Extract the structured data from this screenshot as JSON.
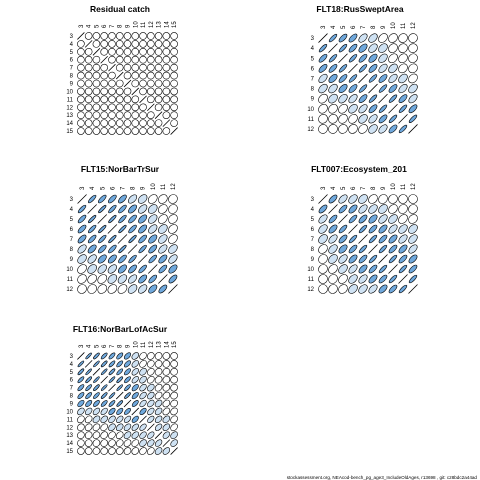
{
  "chart_data": [
    {
      "type": "heatmap",
      "title": "Residual catch",
      "ages": [
        "3",
        "4",
        "5",
        "6",
        "7",
        "8",
        "9",
        "10",
        "11",
        "12",
        "13",
        "14",
        "15"
      ],
      "values": [
        [
          1.0,
          0.05,
          0.0,
          0.0,
          0.0,
          0.0,
          0.0,
          0.0,
          0.0,
          0.0,
          0.0,
          0.0,
          0.0
        ],
        [
          0.05,
          1.0,
          0.05,
          0.0,
          0.0,
          0.0,
          0.0,
          0.0,
          0.0,
          0.0,
          0.0,
          0.0,
          0.0
        ],
        [
          0.0,
          0.05,
          1.0,
          0.05,
          0.0,
          0.0,
          0.0,
          0.0,
          0.0,
          0.0,
          0.0,
          0.0,
          0.0
        ],
        [
          0.0,
          0.0,
          0.05,
          1.0,
          0.05,
          0.0,
          0.0,
          0.0,
          0.0,
          0.0,
          0.0,
          0.0,
          0.0
        ],
        [
          0.0,
          0.0,
          0.0,
          0.05,
          1.0,
          0.05,
          0.0,
          0.0,
          0.0,
          0.0,
          0.0,
          0.0,
          0.0
        ],
        [
          0.0,
          0.0,
          0.0,
          0.0,
          0.05,
          1.0,
          0.05,
          0.0,
          0.0,
          0.0,
          0.0,
          0.0,
          0.0
        ],
        [
          0.0,
          0.0,
          0.0,
          0.0,
          0.0,
          0.05,
          1.0,
          0.05,
          0.0,
          0.0,
          0.0,
          0.0,
          0.0
        ],
        [
          0.0,
          0.0,
          0.0,
          0.0,
          0.0,
          0.0,
          0.05,
          1.0,
          0.05,
          0.0,
          0.0,
          0.0,
          0.0
        ],
        [
          0.0,
          0.0,
          0.0,
          0.0,
          0.0,
          0.0,
          0.0,
          0.05,
          1.0,
          0.05,
          0.0,
          0.0,
          0.0
        ],
        [
          0.0,
          0.0,
          0.0,
          0.0,
          0.0,
          0.0,
          0.0,
          0.0,
          0.05,
          1.0,
          0.05,
          0.0,
          0.0
        ],
        [
          0.0,
          0.0,
          0.0,
          0.0,
          0.0,
          0.0,
          0.0,
          0.0,
          0.0,
          0.05,
          1.0,
          0.05,
          0.0
        ],
        [
          0.0,
          0.0,
          0.0,
          0.0,
          0.0,
          0.0,
          0.0,
          0.0,
          0.0,
          0.0,
          0.05,
          1.0,
          0.05
        ],
        [
          0.0,
          0.0,
          0.0,
          0.0,
          0.0,
          0.0,
          0.0,
          0.0,
          0.0,
          0.0,
          0.0,
          0.05,
          1.0
        ]
      ]
    },
    {
      "type": "heatmap",
      "title": "FLT18:RusSweptArea",
      "ages": [
        "3",
        "4",
        "5",
        "6",
        "7",
        "8",
        "9",
        "10",
        "11",
        "12"
      ],
      "values": [
        [
          1.0,
          0.85,
          0.75,
          0.7,
          0.55,
          0.45,
          0.3,
          0.2,
          0.1,
          0.05
        ],
        [
          0.85,
          1.0,
          0.85,
          0.75,
          0.6,
          0.45,
          0.35,
          0.2,
          0.1,
          0.05
        ],
        [
          0.75,
          0.85,
          1.0,
          0.85,
          0.75,
          0.6,
          0.45,
          0.3,
          0.2,
          0.1
        ],
        [
          0.7,
          0.75,
          0.85,
          1.0,
          0.85,
          0.7,
          0.55,
          0.4,
          0.25,
          0.15
        ],
        [
          0.55,
          0.6,
          0.75,
          0.85,
          1.0,
          0.85,
          0.7,
          0.55,
          0.4,
          0.25
        ],
        [
          0.45,
          0.45,
          0.6,
          0.7,
          0.85,
          1.0,
          0.85,
          0.7,
          0.55,
          0.4
        ],
        [
          0.3,
          0.35,
          0.45,
          0.55,
          0.7,
          0.85,
          1.0,
          0.85,
          0.7,
          0.55
        ],
        [
          0.2,
          0.2,
          0.3,
          0.4,
          0.55,
          0.7,
          0.85,
          1.0,
          0.85,
          0.7
        ],
        [
          0.1,
          0.1,
          0.2,
          0.25,
          0.4,
          0.55,
          0.7,
          0.85,
          1.0,
          0.85
        ],
        [
          0.05,
          0.05,
          0.1,
          0.15,
          0.25,
          0.4,
          0.55,
          0.7,
          0.85,
          1.0
        ]
      ]
    },
    {
      "type": "heatmap",
      "title": "FLT15:NorBarTrSur",
      "ages": [
        "3",
        "4",
        "5",
        "6",
        "7",
        "8",
        "9",
        "10",
        "11",
        "12"
      ],
      "values": [
        [
          1.0,
          0.85,
          0.8,
          0.75,
          0.7,
          0.55,
          0.4,
          0.3,
          0.2,
          0.1
        ],
        [
          0.85,
          1.0,
          0.9,
          0.85,
          0.8,
          0.65,
          0.5,
          0.35,
          0.25,
          0.15
        ],
        [
          0.8,
          0.9,
          1.0,
          0.9,
          0.85,
          0.75,
          0.6,
          0.45,
          0.3,
          0.2
        ],
        [
          0.75,
          0.85,
          0.9,
          1.0,
          0.9,
          0.8,
          0.65,
          0.5,
          0.35,
          0.25
        ],
        [
          0.7,
          0.8,
          0.85,
          0.9,
          1.0,
          0.9,
          0.75,
          0.6,
          0.45,
          0.3
        ],
        [
          0.55,
          0.65,
          0.75,
          0.8,
          0.9,
          1.0,
          0.85,
          0.7,
          0.55,
          0.4
        ],
        [
          0.4,
          0.5,
          0.6,
          0.65,
          0.75,
          0.85,
          1.0,
          0.8,
          0.65,
          0.5
        ],
        [
          0.3,
          0.35,
          0.45,
          0.5,
          0.6,
          0.7,
          0.8,
          1.0,
          0.75,
          0.6
        ],
        [
          0.2,
          0.25,
          0.3,
          0.35,
          0.45,
          0.55,
          0.65,
          0.75,
          1.0,
          0.7
        ],
        [
          0.1,
          0.15,
          0.2,
          0.25,
          0.3,
          0.4,
          0.5,
          0.6,
          0.7,
          1.0
        ]
      ]
    },
    {
      "type": "heatmap",
      "title": "FLT007:Ecosystem_201",
      "ages": [
        "3",
        "4",
        "5",
        "6",
        "7",
        "8",
        "9",
        "10",
        "11",
        "12"
      ],
      "values": [
        [
          1.0,
          0.7,
          0.55,
          0.45,
          0.35,
          0.25,
          0.15,
          0.1,
          0.05,
          0.0
        ],
        [
          0.7,
          1.0,
          0.75,
          0.65,
          0.55,
          0.45,
          0.35,
          0.25,
          0.15,
          0.1
        ],
        [
          0.55,
          0.75,
          1.0,
          0.8,
          0.7,
          0.6,
          0.5,
          0.4,
          0.3,
          0.2
        ],
        [
          0.45,
          0.65,
          0.8,
          1.0,
          0.85,
          0.75,
          0.65,
          0.55,
          0.45,
          0.35
        ],
        [
          0.35,
          0.55,
          0.7,
          0.85,
          1.0,
          0.85,
          0.75,
          0.65,
          0.55,
          0.45
        ],
        [
          0.25,
          0.45,
          0.6,
          0.75,
          0.85,
          1.0,
          0.85,
          0.75,
          0.65,
          0.55
        ],
        [
          0.15,
          0.35,
          0.5,
          0.65,
          0.75,
          0.85,
          1.0,
          0.85,
          0.75,
          0.65
        ],
        [
          0.1,
          0.25,
          0.4,
          0.55,
          0.65,
          0.75,
          0.85,
          1.0,
          0.85,
          0.75
        ],
        [
          0.05,
          0.15,
          0.3,
          0.45,
          0.55,
          0.65,
          0.75,
          0.85,
          1.0,
          0.85
        ],
        [
          0.0,
          0.1,
          0.2,
          0.35,
          0.45,
          0.55,
          0.65,
          0.75,
          0.85,
          1.0
        ]
      ]
    },
    {
      "type": "heatmap",
      "title": "FLT16:NorBarLofAcSur",
      "ages": [
        "3",
        "4",
        "5",
        "6",
        "7",
        "8",
        "9",
        "10",
        "11",
        "12",
        "13",
        "14",
        "15"
      ],
      "values": [
        [
          1.0,
          0.9,
          0.85,
          0.8,
          0.75,
          0.7,
          0.6,
          0.4,
          0.25,
          0.15,
          0.1,
          0.05,
          0.0
        ],
        [
          0.9,
          1.0,
          0.9,
          0.85,
          0.8,
          0.75,
          0.65,
          0.45,
          0.3,
          0.2,
          0.1,
          0.05,
          0.0
        ],
        [
          0.85,
          0.9,
          1.0,
          0.9,
          0.85,
          0.8,
          0.7,
          0.5,
          0.35,
          0.25,
          0.15,
          0.1,
          0.05
        ],
        [
          0.8,
          0.85,
          0.9,
          1.0,
          0.9,
          0.85,
          0.75,
          0.55,
          0.4,
          0.3,
          0.2,
          0.1,
          0.05
        ],
        [
          0.75,
          0.8,
          0.85,
          0.9,
          1.0,
          0.9,
          0.8,
          0.6,
          0.45,
          0.35,
          0.25,
          0.15,
          0.1
        ],
        [
          0.7,
          0.75,
          0.8,
          0.85,
          0.9,
          1.0,
          0.85,
          0.65,
          0.5,
          0.4,
          0.3,
          0.2,
          0.1
        ],
        [
          0.6,
          0.65,
          0.7,
          0.75,
          0.8,
          0.85,
          1.0,
          0.7,
          0.55,
          0.45,
          0.35,
          0.25,
          0.15
        ],
        [
          0.4,
          0.45,
          0.5,
          0.55,
          0.6,
          0.65,
          0.7,
          1.0,
          0.6,
          0.5,
          0.4,
          0.3,
          0.2
        ],
        [
          0.25,
          0.3,
          0.35,
          0.4,
          0.45,
          0.5,
          0.55,
          0.6,
          1.0,
          0.55,
          0.45,
          0.35,
          0.25
        ],
        [
          0.15,
          0.2,
          0.25,
          0.3,
          0.35,
          0.4,
          0.45,
          0.5,
          0.55,
          1.0,
          0.5,
          0.4,
          0.3
        ],
        [
          0.1,
          0.1,
          0.15,
          0.2,
          0.25,
          0.3,
          0.35,
          0.4,
          0.45,
          0.5,
          1.0,
          0.45,
          0.35
        ],
        [
          0.05,
          0.05,
          0.1,
          0.1,
          0.15,
          0.2,
          0.25,
          0.3,
          0.35,
          0.4,
          0.45,
          1.0,
          0.4
        ],
        [
          0.0,
          0.0,
          0.05,
          0.05,
          0.1,
          0.1,
          0.15,
          0.2,
          0.25,
          0.3,
          0.35,
          0.4,
          1.0
        ]
      ]
    }
  ],
  "colors": {
    "positive_fill": "#6fa8dc",
    "light_fill": "#cfe2f3",
    "neutral_fill": "#ffffff",
    "stroke": "#000000"
  },
  "footer": "stockassessment.org,  NEAcod-bench_pg_age3_IncludeOldAges,  r13698 ,  git: c28bdc2a44ad"
}
